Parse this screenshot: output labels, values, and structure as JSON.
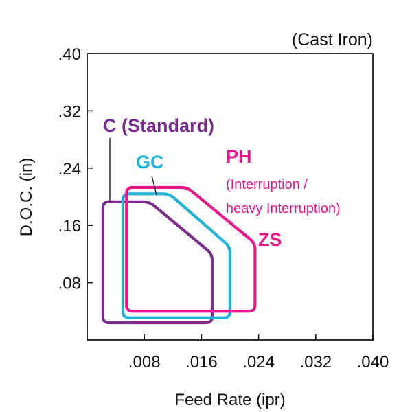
{
  "chart_data": {
    "type": "line",
    "title": "",
    "subtitle": "(Cast Iron)",
    "xlabel": "Feed Rate (ipr)",
    "ylabel": "D.O.C. (in)",
    "xlim": [
      0,
      0.04
    ],
    "ylim": [
      0,
      0.4
    ],
    "x_ticks": [
      {
        "value": 0.008,
        "label": ".008"
      },
      {
        "value": 0.016,
        "label": ".016"
      },
      {
        "value": 0.024,
        "label": ".024"
      },
      {
        "value": 0.032,
        "label": ".032"
      },
      {
        "value": 0.04,
        "label": ".040"
      }
    ],
    "y_ticks": [
      {
        "value": 0.08,
        "label": ".08"
      },
      {
        "value": 0.16,
        "label": ".16"
      },
      {
        "value": 0.24,
        "label": ".24"
      },
      {
        "value": 0.32,
        "label": ".32"
      },
      {
        "value": 0.4,
        "label": ".40"
      }
    ],
    "grid": false,
    "series": [
      {
        "name": "C (Standard)",
        "color": "#7b2d8e",
        "points": [
          {
            "x": 0.0022,
            "y": 0.024
          },
          {
            "x": 0.0175,
            "y": 0.024
          },
          {
            "x": 0.0175,
            "y": 0.12
          },
          {
            "x": 0.0087,
            "y": 0.193
          },
          {
            "x": 0.0022,
            "y": 0.193
          }
        ]
      },
      {
        "name": "GC",
        "color": "#1fb2d6",
        "points": [
          {
            "x": 0.005,
            "y": 0.031
          },
          {
            "x": 0.02,
            "y": 0.031
          },
          {
            "x": 0.02,
            "y": 0.13
          },
          {
            "x": 0.0115,
            "y": 0.204
          },
          {
            "x": 0.005,
            "y": 0.204
          }
        ]
      },
      {
        "name": "PH ZS",
        "color": "#e8168c",
        "points": [
          {
            "x": 0.0055,
            "y": 0.04
          },
          {
            "x": 0.0235,
            "y": 0.04
          },
          {
            "x": 0.0235,
            "y": 0.135
          },
          {
            "x": 0.014,
            "y": 0.213
          },
          {
            "x": 0.0055,
            "y": 0.213
          }
        ]
      }
    ],
    "annotations": [
      {
        "text": "C (Standard)",
        "color": "#7b2d8e",
        "size": "large"
      },
      {
        "text": "GC",
        "color": "#1fb2d6",
        "size": "large"
      },
      {
        "text": "PH",
        "color": "#e8168c",
        "size": "large"
      },
      {
        "text": "(Interruption /",
        "color": "#e8168c",
        "size": "small"
      },
      {
        "text": "heavy Interruption)",
        "color": "#e8168c",
        "size": "small"
      },
      {
        "text": "ZS",
        "color": "#e8168c",
        "size": "large"
      }
    ]
  }
}
